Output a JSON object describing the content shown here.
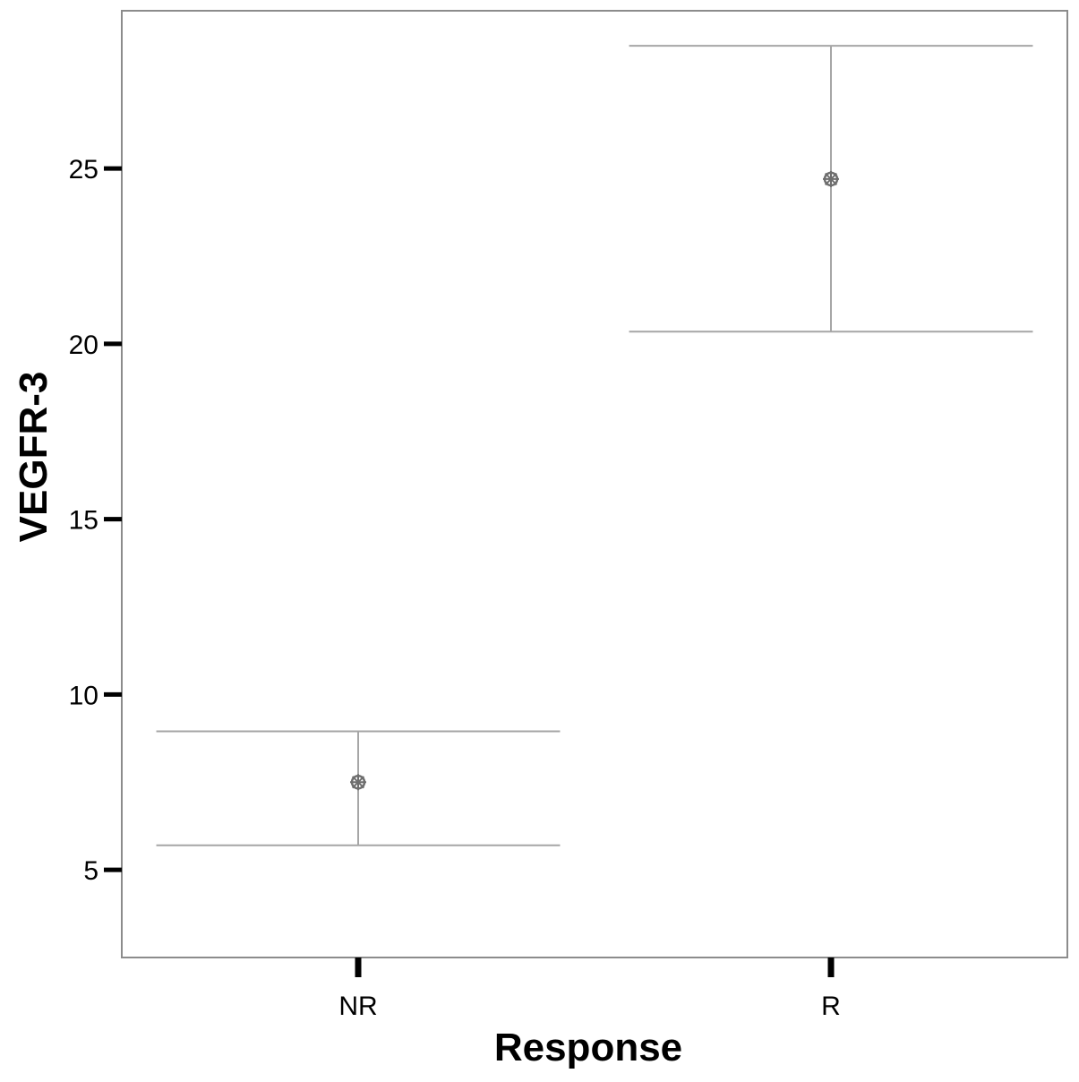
{
  "chart_data": {
    "type": "errorbar",
    "xlabel": "Response",
    "ylabel": "VEGFR-3",
    "categories": [
      "NR",
      "R"
    ],
    "series": [
      {
        "points": [
          {
            "category": "NR",
            "mean": 7.5,
            "lower": 5.7,
            "upper": 8.95
          },
          {
            "category": "R",
            "mean": 24.7,
            "lower": 20.35,
            "upper": 28.5
          }
        ]
      }
    ],
    "ylim": [
      2.5,
      29.5
    ],
    "yticks": [
      5,
      10,
      15,
      20,
      25
    ],
    "ytick_labels": [
      "5",
      "10",
      "15",
      "20",
      "25"
    ],
    "grid": false,
    "legend": "none",
    "colors": {
      "errorbar": "#a6a6a6",
      "point": "#6e6e6e",
      "panel_border": "#8c8c8c",
      "ticks": "#000000"
    },
    "marker_icon": "asterisk-circle-icon"
  }
}
